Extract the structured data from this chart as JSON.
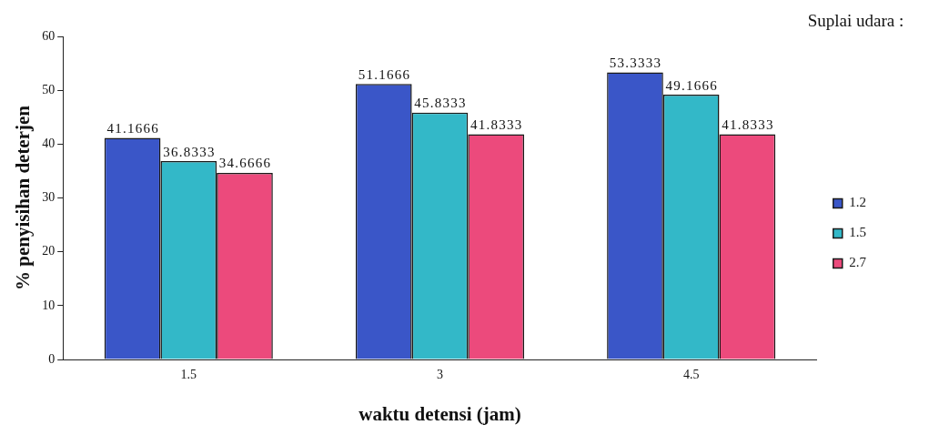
{
  "chart_data": {
    "type": "bar",
    "xlabel": "waktu detensi (jam)",
    "ylabel": "% penyisihan deterjen",
    "legend_title": "Suplai udara :",
    "categories": [
      "1.5",
      "3",
      "4.5"
    ],
    "series": [
      {
        "name": "1.2",
        "color": "#3a56c8",
        "values": [
          41.1666,
          51.1666,
          53.3333
        ]
      },
      {
        "name": "1.5",
        "color": "#33b8c8",
        "values": [
          36.8333,
          45.8333,
          49.1666
        ]
      },
      {
        "name": "2.7",
        "color": "#ec4a7c",
        "values": [
          34.6666,
          41.8333,
          41.8333
        ]
      }
    ],
    "ylim": [
      0,
      60
    ],
    "yticks": [
      0,
      10,
      20,
      30,
      40,
      50,
      60
    ],
    "grid": false,
    "legend": "right",
    "data_labels": true
  }
}
